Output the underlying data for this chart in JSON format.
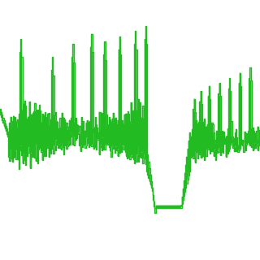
{
  "line_color": "#22bb22",
  "fill_color": "#22bb22",
  "background_color": "#ffffff",
  "linewidth": 1.0,
  "n_points": 280,
  "seed": 7,
  "figsize": [
    3.2,
    3.2
  ],
  "dpi": 100,
  "ylim": [
    0.0,
    1.0
  ],
  "xlim": [
    0.0,
    1.0
  ]
}
